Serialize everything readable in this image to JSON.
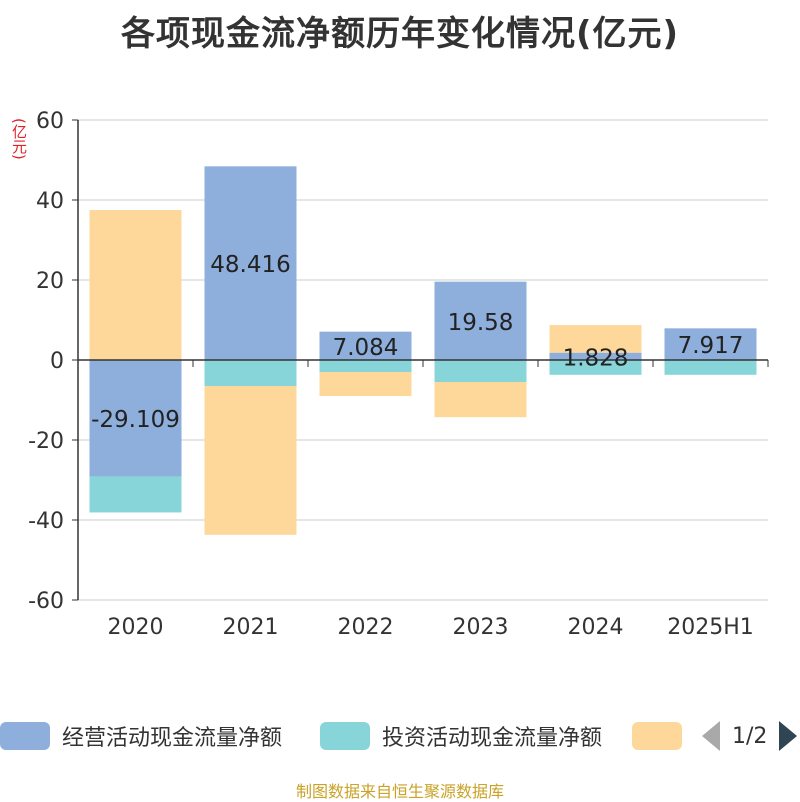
{
  "title": "各项现金流净额历年变化情况(亿元)",
  "unit_label": "(亿元)",
  "source": "制图数据来自恒生聚源数据库",
  "legend": {
    "items": [
      {
        "label": "经营活动现金流量净额",
        "color": "#8eaedb"
      },
      {
        "label": "投资活动现金流量净额",
        "color": "#87d5d8"
      },
      {
        "label": "",
        "color": "#fdd89a"
      }
    ],
    "page": "1/2"
  },
  "chart_data": {
    "type": "bar",
    "stacked": true,
    "categories": [
      "2020",
      "2021",
      "2022",
      "2023",
      "2024",
      "2025H1"
    ],
    "ylim": [
      -60,
      60
    ],
    "yticks": [
      60,
      40,
      20,
      0,
      -20,
      -40,
      -60
    ],
    "grid": true,
    "legend_position": "bottom",
    "series": [
      {
        "name": "经营活动现金流量净额",
        "color": "#8eaedb",
        "values": [
          -29.109,
          48.416,
          7.084,
          19.58,
          1.828,
          7.917
        ],
        "labels": [
          "-29.109",
          "48.416",
          "7.084",
          "19.58",
          "1.828",
          "7.917"
        ]
      },
      {
        "name": "投资活动现金流量净额",
        "color": "#87d5d8",
        "values": [
          -9.0,
          -6.5,
          -3.0,
          -5.5,
          -3.7,
          -3.7
        ]
      },
      {
        "color": "#fdd89a",
        "values": [
          37.5,
          -37.2,
          -6.0,
          -8.8,
          6.9,
          0.0
        ]
      }
    ]
  }
}
